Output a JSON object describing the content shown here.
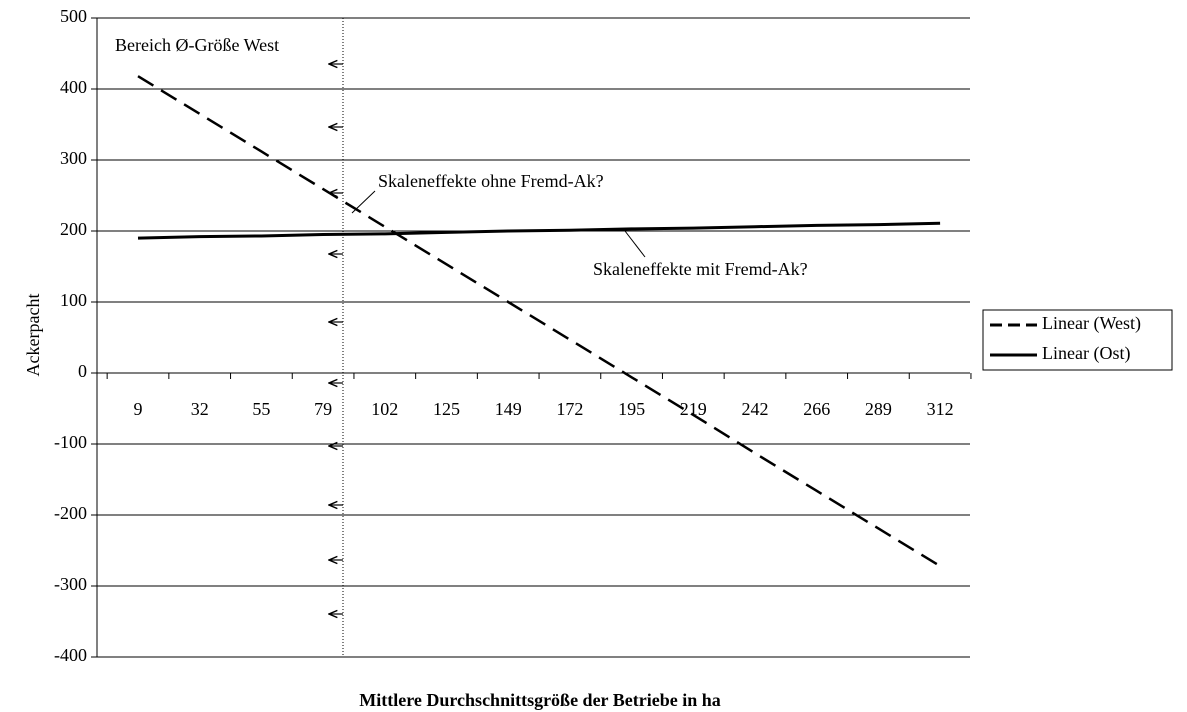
{
  "chart_data": {
    "type": "line",
    "x_label": "Mittlere Durchschnittsgröße der Betriebe in ha",
    "y_label": "Ackerpacht",
    "categories": [
      "9",
      "32",
      "55",
      "79",
      "102",
      "125",
      "149",
      "172",
      "195",
      "219",
      "242",
      "266",
      "289",
      "312"
    ],
    "series": [
      {
        "name": "Linear (West)",
        "color": "#000000",
        "dash": true,
        "values": [
          418,
          365,
          312,
          259,
          206,
          153,
          100,
          47,
          -6,
          -59,
          -113,
          -166,
          -219,
          -272
        ]
      },
      {
        "name": "Linear (Ost)",
        "color": "#000000",
        "dash": false,
        "values": [
          190,
          192,
          193,
          195,
          196,
          198,
          200,
          201,
          203,
          204,
          206,
          208,
          209,
          211
        ]
      }
    ],
    "ylim": [
      -400,
      500
    ],
    "yticks": [
      -400,
      -300,
      -200,
      -100,
      0,
      100,
      200,
      300,
      400,
      500
    ],
    "grid": true,
    "legend": "right",
    "annotations": [
      "Bereich Ø-Größe West",
      "Skaleneffekte ohne Fremd-Ak?",
      "Skaleneffekte mit Fremd-Ak?"
    ]
  }
}
